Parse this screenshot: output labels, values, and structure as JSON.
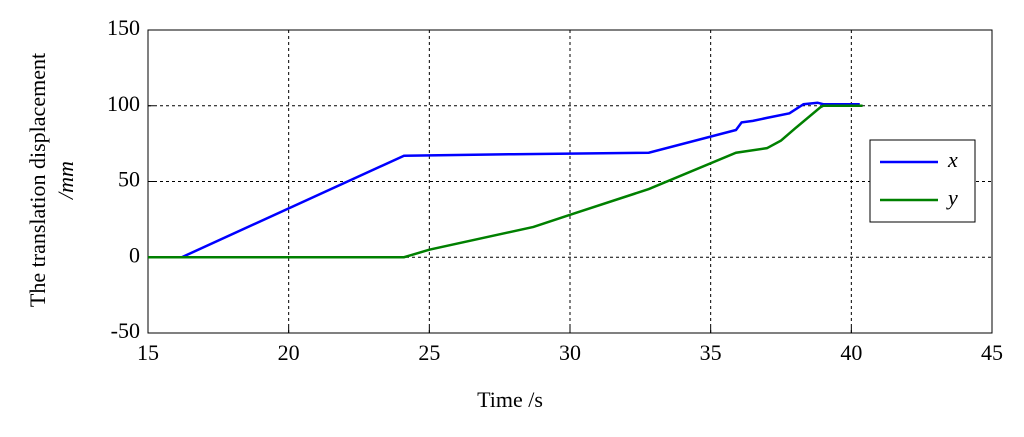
{
  "chart_data": {
    "type": "line",
    "xlabel": "Time /s",
    "ylabel": [
      "The translation displacement",
      "/mm"
    ],
    "x": [
      15,
      16.2,
      24.1,
      28,
      32.8,
      35.9,
      36.1,
      36.5,
      37,
      37.8,
      38.3,
      38.8,
      39,
      40.3
    ],
    "series": [
      {
        "name": "x",
        "color": "#0000ff",
        "values": [
          0,
          0,
          67,
          68,
          69,
          84,
          89,
          90,
          92,
          95,
          101,
          102,
          101,
          101
        ]
      },
      {
        "name": "y",
        "color": "#008000",
        "x": [
          15,
          24.1,
          25,
          28.7,
          30,
          32.8,
          35.9,
          37,
          37.5,
          38,
          38.9,
          39,
          40.4
        ],
        "values": [
          0,
          0,
          5,
          20,
          28,
          45,
          69,
          72,
          77,
          85,
          99,
          100,
          100
        ]
      }
    ],
    "xlim": [
      15,
      45
    ],
    "xticks": [
      15,
      20,
      25,
      30,
      35,
      40,
      45
    ],
    "ylim": [
      -50,
      150
    ],
    "yticks": [
      -50,
      0,
      50,
      100,
      150
    ],
    "grid": true,
    "legend": "right"
  }
}
